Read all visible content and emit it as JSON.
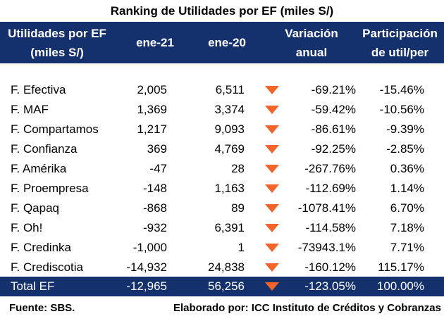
{
  "title": "Ranking de Utilidades por EF (miles S/)",
  "header": {
    "name_line1": "Utilidades por EF",
    "name_line2": "(miles S/)",
    "ene21": "ene-21",
    "ene20": "ene-20",
    "var_line1": "Variación",
    "var_line2": "anual",
    "part_line1": "Participación",
    "part_line2": "de util/per"
  },
  "rows": [
    {
      "name": "F. Efectiva",
      "ene21": "2,005",
      "ene20": "6,511",
      "var": "-69.21%",
      "part": "-15.46%"
    },
    {
      "name": "F. MAF",
      "ene21": "1,369",
      "ene20": "3,374",
      "var": "-59.42%",
      "part": "-10.56%"
    },
    {
      "name": "F. Compartamos",
      "ene21": "1,217",
      "ene20": "9,093",
      "var": "-86.61%",
      "part": "-9.39%"
    },
    {
      "name": "F. Confianza",
      "ene21": "369",
      "ene20": "4,769",
      "var": "-92.25%",
      "part": "-2.85%"
    },
    {
      "name": "F. Amérika",
      "ene21": "-47",
      "ene20": "28",
      "var": "-267.76%",
      "part": "0.36%"
    },
    {
      "name": "F. Proempresa",
      "ene21": "-148",
      "ene20": "1,163",
      "var": "-112.69%",
      "part": "1.14%"
    },
    {
      "name": "F. Qapaq",
      "ene21": "-868",
      "ene20": "89",
      "var": "-1078.41%",
      "part": "6.70%"
    },
    {
      "name": "F. Oh!",
      "ene21": "-932",
      "ene20": "6,391",
      "var": "-114.58%",
      "part": "7.18%"
    },
    {
      "name": "F. Credinka",
      "ene21": "-1,000",
      "ene20": "1",
      "var": "-73943.1%",
      "part": "7.71%"
    },
    {
      "name": "F. Crediscotia",
      "ene21": "-14,932",
      "ene20": "24,838",
      "var": "-160.12%",
      "part": "115.17%"
    }
  ],
  "total": {
    "name": "Total EF",
    "ene21": "-12,965",
    "ene20": "56,256",
    "var": "-123.05%",
    "part": "100.00%"
  },
  "indicator_icon": "down-triangle-icon",
  "colors": {
    "header_bg": "#14306d",
    "indicator": "#f4632a"
  },
  "footer": {
    "source": "Fuente: SBS.",
    "credit": "Elaborado por: ICC Instituto de Créditos y Cobranzas"
  }
}
